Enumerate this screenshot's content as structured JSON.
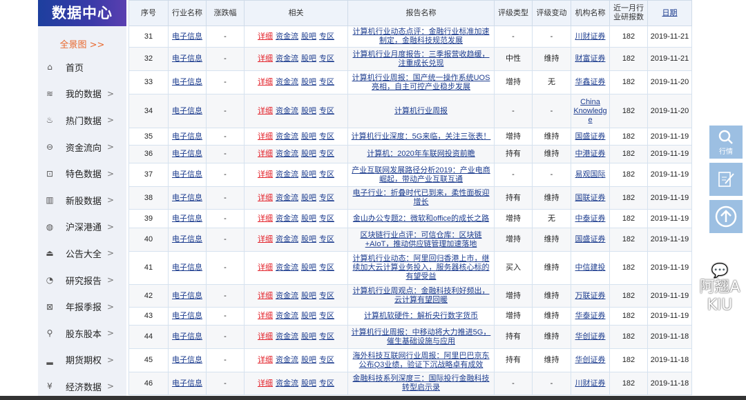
{
  "sidebar": {
    "logo": "数据中心",
    "overview": "全景图 >>",
    "items": [
      {
        "label": "首页",
        "icon": "home-icon",
        "chev": ""
      },
      {
        "label": "我的数据",
        "icon": "layers-icon",
        "chev": ">"
      },
      {
        "label": "热门数据",
        "icon": "fire-icon",
        "chev": ">"
      },
      {
        "label": "资金流向",
        "icon": "money-flow-icon",
        "chev": ">"
      },
      {
        "label": "特色数据",
        "icon": "bookmark-icon",
        "chev": ">"
      },
      {
        "label": "新股数据",
        "icon": "bar-icon",
        "chev": ">"
      },
      {
        "label": "沪深港通",
        "icon": "globe-icon",
        "chev": ">"
      },
      {
        "label": "公告大全",
        "icon": "inbox-icon",
        "chev": ">"
      },
      {
        "label": "研究报告",
        "icon": "pie-icon",
        "chev": ">"
      },
      {
        "label": "年报季报",
        "icon": "chart-box-icon",
        "chev": ">"
      },
      {
        "label": "股东股本",
        "icon": "user-icon",
        "chev": ">"
      },
      {
        "label": "期货期权",
        "icon": "histogram-icon",
        "chev": ">"
      },
      {
        "label": "经济数据",
        "icon": "yen-icon",
        "chev": ">"
      }
    ]
  },
  "table": {
    "headers": [
      "序号",
      "行业名称",
      "涨跌幅",
      "相关",
      "报告名称",
      "评级类型",
      "评级变动",
      "机构名称",
      "近一月行业研报数",
      "日期"
    ],
    "links": [
      "详细",
      "资金流",
      "股吧",
      "专区"
    ],
    "rows": [
      [
        "31",
        "电子信息",
        "-",
        "计算机行业动态点评：金融行业标准加速制定，金融科技规范发展",
        "-",
        "-",
        "川财证券",
        "182",
        "2019-11-21"
      ],
      [
        "32",
        "电子信息",
        "-",
        "计算机行业月度报告：三季报营收趋缓，注重成长兑现",
        "中性",
        "维持",
        "财富证券",
        "182",
        "2019-11-21"
      ],
      [
        "33",
        "电子信息",
        "-",
        "计算机行业周报：国产统一操作系统UOS亮相，自主可控产业稳步发展",
        "增持",
        "无",
        "华鑫证券",
        "182",
        "2019-11-20"
      ],
      [
        "34",
        "电子信息",
        "-",
        "计算机行业周报",
        "-",
        "-",
        "China Knowledge",
        "182",
        "2019-11-20"
      ],
      [
        "35",
        "电子信息",
        "-",
        "计算机行业深度：5G来临，关注三张表！",
        "增持",
        "维持",
        "国盛证券",
        "182",
        "2019-11-19"
      ],
      [
        "36",
        "电子信息",
        "-",
        "计算机：2020年车联网投资前瞻",
        "持有",
        "维持",
        "中港证券",
        "182",
        "2019-11-19"
      ],
      [
        "37",
        "电子信息",
        "-",
        "产业互联网发展路径分析2019：产业电商崛起，带动产业互联互通",
        "-",
        "-",
        "易观国际",
        "182",
        "2019-11-19"
      ],
      [
        "38",
        "电子信息",
        "-",
        "电子行业：折叠时代已到来，柔性面板迎增长",
        "持有",
        "维持",
        "国联证券",
        "182",
        "2019-11-19"
      ],
      [
        "39",
        "电子信息",
        "-",
        "金山办公专题2：微软和office的成长之路",
        "增持",
        "无",
        "中泰证券",
        "182",
        "2019-11-19"
      ],
      [
        "40",
        "电子信息",
        "-",
        "区块链行业点评：可信仓库：区块链+AIoT，推动供应链管理加速落地",
        "增持",
        "维持",
        "国盛证券",
        "182",
        "2019-11-19"
      ],
      [
        "41",
        "电子信息",
        "-",
        "计算机行业动态：阿里回归香港上市，继续加大云计算业务投入，服务器核心标的有望受益",
        "买入",
        "维持",
        "中信建投",
        "182",
        "2019-11-19"
      ],
      [
        "42",
        "电子信息",
        "-",
        "计算机行业周观点：金融科技利好频出，云计算有望回暖",
        "增持",
        "维持",
        "万联证券",
        "182",
        "2019-11-19"
      ],
      [
        "43",
        "电子信息",
        "-",
        "计算机软硬件：解析央行数字货币",
        "增持",
        "维持",
        "华泰证券",
        "182",
        "2019-11-19"
      ],
      [
        "44",
        "电子信息",
        "-",
        "计算机行业周报：中移动将大力推进5G，催生基础设施与应用",
        "持有",
        "维持",
        "华创证券",
        "182",
        "2019-11-18"
      ],
      [
        "45",
        "电子信息",
        "-",
        "海外科技互联网行业周报：阿里巴巴京东公布Q3业绩，验证下沉战略卓有成效",
        "持有",
        "维持",
        "华创证券",
        "182",
        "2019-11-18"
      ],
      [
        "46",
        "电子信息",
        "-",
        "金融科技系列深度三：国际投行金融科技转型启示录",
        "-",
        "-",
        "川财证券",
        "182",
        "2019-11-18"
      ]
    ]
  },
  "float": {
    "search_label": "行情"
  },
  "watermark": "阿翘AKIU"
}
